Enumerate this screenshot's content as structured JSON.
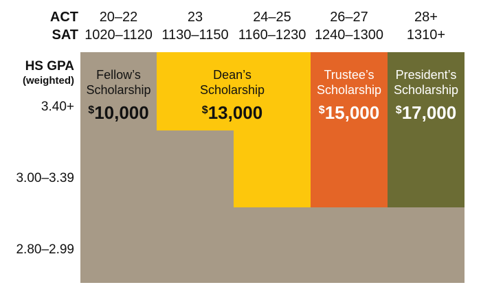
{
  "header": {
    "act_label": "ACT",
    "sat_label": "SAT",
    "columns": [
      {
        "act": "20–22",
        "sat": "1020–1120"
      },
      {
        "act": "23",
        "sat": "1130–1150"
      },
      {
        "act": "24–25",
        "sat": "1160–1230"
      },
      {
        "act": "26–27",
        "sat": "1240–1300"
      },
      {
        "act": "28+",
        "sat": "1310+"
      }
    ]
  },
  "gpa": {
    "label": "HS GPA",
    "sublabel": "(weighted)",
    "rows": [
      "3.40+",
      "3.00–3.39",
      "2.80–2.99"
    ]
  },
  "scholarships": [
    {
      "name_line1": "Fellow’s",
      "name_line2": "Scholarship",
      "currency": "$",
      "amount": "10,000",
      "color": "#a79a87",
      "text_color": "#111111"
    },
    {
      "name_line1": "Dean’s",
      "name_line2": "Scholarship",
      "currency": "$",
      "amount": "13,000",
      "color": "#fdc70c",
      "text_color": "#111111"
    },
    {
      "name_line1": "Trustee’s",
      "name_line2": "Scholarship",
      "currency": "$",
      "amount": "15,000",
      "color": "#e46527",
      "text_color": "#ffffff"
    },
    {
      "name_line1": "President’s",
      "name_line2": "Scholarship",
      "currency": "$",
      "amount": "17,000",
      "color": "#6b6c34",
      "text_color": "#ffffff"
    }
  ]
}
